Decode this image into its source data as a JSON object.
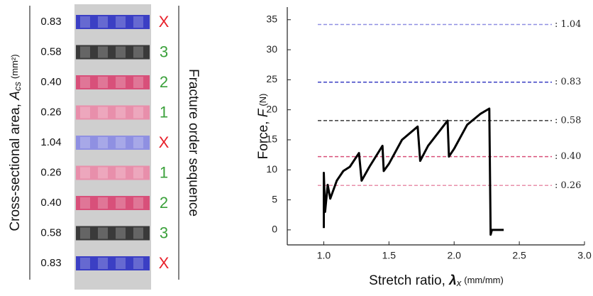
{
  "diagram": {
    "y_label": {
      "text": "Cross-sectional area, ",
      "symbol": "A",
      "subscript": "cs",
      "unit": "(mm²)"
    },
    "side_label": "Fracture order sequence",
    "rows": [
      {
        "area": "0.83",
        "order": "X",
        "color": "#3b3fc4",
        "order_color": "#e8202a"
      },
      {
        "area": "0.58",
        "order": "3",
        "color": "#3a3a3a",
        "order_color": "#3aa03a"
      },
      {
        "area": "0.40",
        "order": "2",
        "color": "#d8507a",
        "order_color": "#3aa03a"
      },
      {
        "area": "0.26",
        "order": "1",
        "color": "#e88fab",
        "order_color": "#3aa03a"
      },
      {
        "area": "1.04",
        "order": "X",
        "color": "#8f90e2",
        "order_color": "#e8202a"
      },
      {
        "area": "0.26",
        "order": "1",
        "color": "#e88fab",
        "order_color": "#3aa03a"
      },
      {
        "area": "0.40",
        "order": "2",
        "color": "#d8507a",
        "order_color": "#3aa03a"
      },
      {
        "area": "0.58",
        "order": "3",
        "color": "#3a3a3a",
        "order_color": "#3aa03a"
      },
      {
        "area": "0.83",
        "order": "X",
        "color": "#3b3fc4",
        "order_color": "#e8202a"
      }
    ]
  },
  "chart_data": {
    "type": "line",
    "x_label": {
      "text": "Stretch ratio, ",
      "symbol": "λ",
      "subscript": "x",
      "unit": "(mm/mm)"
    },
    "y_label": {
      "text": "Force, ",
      "symbol": "F",
      "unit": "(N)"
    },
    "x": [
      1.0,
      1.0,
      1.01,
      1.03,
      1.05,
      1.1,
      1.15,
      1.2,
      1.27,
      1.29,
      1.35,
      1.45,
      1.46,
      1.5,
      1.6,
      1.72,
      1.74,
      1.8,
      1.95,
      1.96,
      2.0,
      2.1,
      2.2,
      2.27,
      2.28,
      2.29,
      2.38
    ],
    "values": [
      0.3,
      9.5,
      3,
      7.5,
      5.2,
      8.2,
      9.8,
      10.5,
      12.8,
      8.2,
      10.5,
      14,
      9.8,
      11,
      15,
      17.2,
      11.5,
      14,
      18.2,
      12.2,
      13.5,
      17.5,
      19.3,
      20.2,
      -0.8,
      0,
      0
    ],
    "color": "#000000",
    "xlim": [
      0.72,
      3.0
    ],
    "ylim": [
      -2.5,
      37.1
    ],
    "xticks": [
      {
        "value": 1.0,
        "label": "1.0"
      },
      {
        "value": 1.5,
        "label": "1.5"
      },
      {
        "value": 2.0,
        "label": "2.0"
      },
      {
        "value": 2.5,
        "label": "2.5"
      },
      {
        "value": 3.0,
        "label": "3.0"
      }
    ],
    "yticks": [
      0,
      5,
      10,
      15,
      20,
      25,
      30,
      35
    ],
    "reference_lines": [
      {
        "value": 34.2,
        "label": ": 1.04",
        "color": "#8f90e2"
      },
      {
        "value": 24.6,
        "label": ": 0.83",
        "color": "#3b3fc4"
      },
      {
        "value": 18.2,
        "label": ": 0.58",
        "color": "#3a3a3a"
      },
      {
        "value": 12.2,
        "label": ": 0.40",
        "color": "#d8507a"
      },
      {
        "value": 7.4,
        "label": ": 0.26",
        "color": "#e88fab"
      }
    ]
  }
}
